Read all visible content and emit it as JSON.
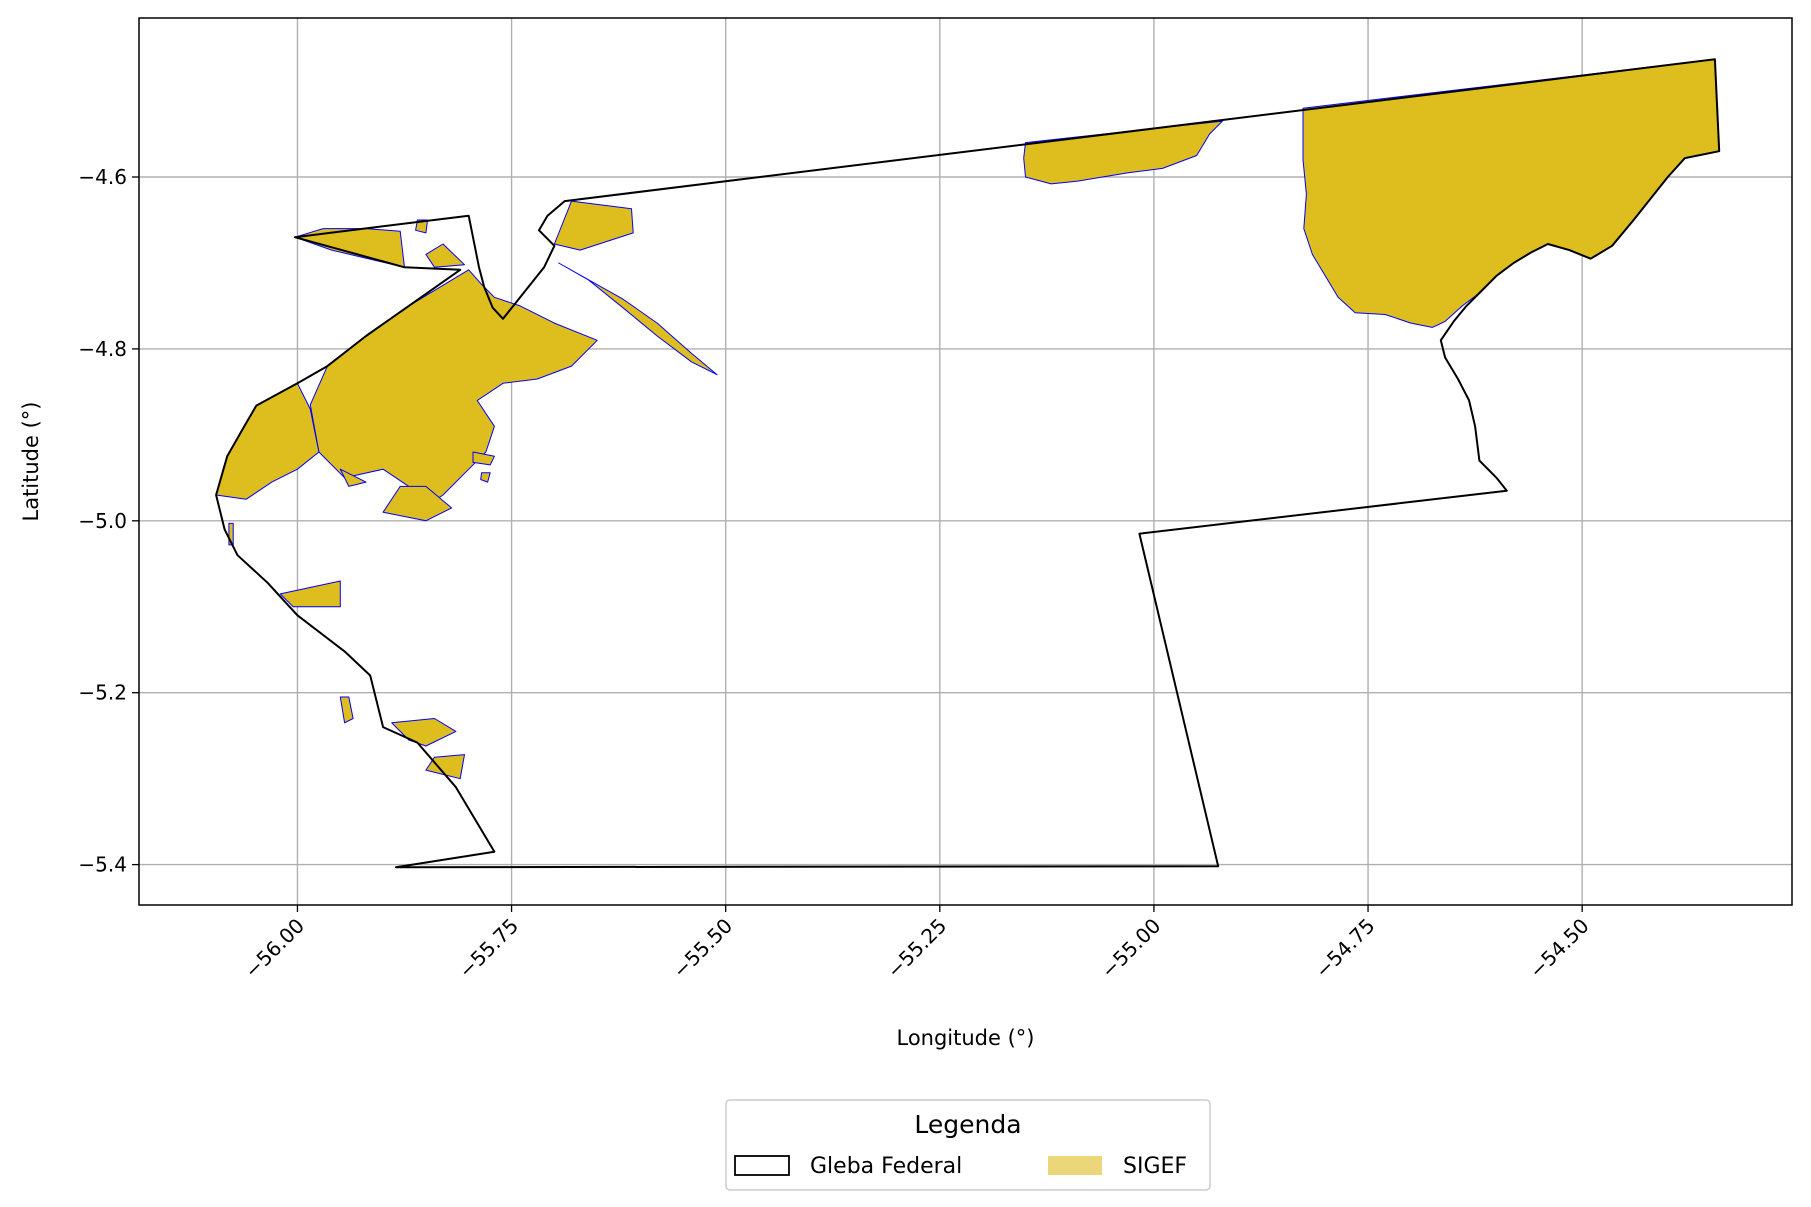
{
  "chart_data": {
    "type": "map",
    "xlabel": "Longitude (°)",
    "ylabel": "Latitude (°)",
    "xlim": [
      -56.185,
      -54.255
    ],
    "ylim": [
      -5.447,
      -4.415
    ],
    "xticks": [
      -56.0,
      -55.75,
      -55.5,
      -55.25,
      -55.0,
      -54.75,
      -54.5
    ],
    "xtick_labels": [
      "−56.00",
      "−55.75",
      "−55.50",
      "−55.25",
      "−55.00",
      "−54.75",
      "−54.50"
    ],
    "yticks": [
      -4.6,
      -4.8,
      -5.0,
      -5.2,
      -5.4
    ],
    "ytick_labels": [
      "−4.6",
      "−4.8",
      "−5.0",
      "−5.2",
      "−5.4"
    ],
    "grid": true,
    "legend": {
      "title": "Legenda",
      "placement": "bottom-center",
      "entries": [
        {
          "label": "Gleba Federal",
          "style": "outline",
          "edge": "#000000",
          "fill": "#ffffff"
        },
        {
          "label": "SIGEF",
          "style": "filled",
          "edge": "#0000ff",
          "fill": "#debd1f"
        }
      ]
    },
    "layers": [
      {
        "name": "Gleba Federal",
        "edge": "#000000",
        "fill": "none",
        "polygons": [
          [
            [
              -55.885,
              -5.403
            ],
            [
              -55.77,
              -5.385
            ],
            [
              -55.815,
              -5.31
            ],
            [
              -55.86,
              -5.258
            ],
            [
              -55.9,
              -5.24
            ],
            [
              -55.915,
              -5.18
            ],
            [
              -55.945,
              -5.152
            ],
            [
              -56.0,
              -5.11
            ],
            [
              -56.035,
              -5.072
            ],
            [
              -56.07,
              -5.04
            ],
            [
              -56.085,
              -5.01
            ],
            [
              -56.095,
              -4.97
            ],
            [
              -56.082,
              -4.925
            ],
            [
              -56.062,
              -4.89
            ],
            [
              -56.048,
              -4.866
            ],
            [
              -56.0,
              -4.84
            ],
            [
              -55.965,
              -4.82
            ],
            [
              -55.92,
              -4.785
            ],
            [
              -55.87,
              -4.75
            ],
            [
              -55.81,
              -4.708
            ],
            [
              -55.875,
              -4.705
            ],
            [
              -56.003,
              -4.67
            ],
            [
              -55.8,
              -4.645
            ],
            [
              -55.788,
              -4.705
            ],
            [
              -55.782,
              -4.728
            ],
            [
              -55.772,
              -4.752
            ],
            [
              -55.76,
              -4.765
            ],
            [
              -55.712,
              -4.705
            ],
            [
              -55.7,
              -4.68
            ],
            [
              -55.718,
              -4.662
            ],
            [
              -55.708,
              -4.645
            ],
            [
              -55.688,
              -4.628
            ],
            [
              -54.345,
              -4.463
            ],
            [
              -54.34,
              -4.57
            ],
            [
              -54.38,
              -4.578
            ],
            [
              -54.4,
              -4.6
            ],
            [
              -54.42,
              -4.625
            ],
            [
              -54.44,
              -4.65
            ],
            [
              -54.465,
              -4.68
            ],
            [
              -54.49,
              -4.695
            ],
            [
              -54.515,
              -4.685
            ],
            [
              -54.54,
              -4.678
            ],
            [
              -54.56,
              -4.688
            ],
            [
              -54.58,
              -4.7
            ],
            [
              -54.6,
              -4.715
            ],
            [
              -54.62,
              -4.735
            ],
            [
              -54.635,
              -4.75
            ],
            [
              -54.65,
              -4.768
            ],
            [
              -54.665,
              -4.79
            ],
            [
              -54.66,
              -4.81
            ],
            [
              -54.645,
              -4.835
            ],
            [
              -54.632,
              -4.86
            ],
            [
              -54.625,
              -4.89
            ],
            [
              -54.62,
              -4.93
            ],
            [
              -54.6,
              -4.95
            ],
            [
              -54.588,
              -4.965
            ],
            [
              -55.017,
              -5.015
            ],
            [
              -54.925,
              -5.402
            ],
            [
              -55.885,
              -5.403
            ]
          ]
        ]
      },
      {
        "name": "SIGEF",
        "edge": "#0000ff",
        "fill": "#debd1f",
        "polygons": [
          [
            [
              -54.826,
              -4.52
            ],
            [
              -54.345,
              -4.463
            ],
            [
              -54.34,
              -4.57
            ],
            [
              -54.38,
              -4.578
            ],
            [
              -54.4,
              -4.6
            ],
            [
              -54.42,
              -4.625
            ],
            [
              -54.44,
              -4.65
            ],
            [
              -54.465,
              -4.68
            ],
            [
              -54.49,
              -4.695
            ],
            [
              -54.515,
              -4.685
            ],
            [
              -54.54,
              -4.678
            ],
            [
              -54.56,
              -4.688
            ],
            [
              -54.58,
              -4.7
            ],
            [
              -54.6,
              -4.715
            ],
            [
              -54.62,
              -4.735
            ],
            [
              -54.64,
              -4.75
            ],
            [
              -54.66,
              -4.768
            ],
            [
              -54.675,
              -4.775
            ],
            [
              -54.7,
              -4.77
            ],
            [
              -54.73,
              -4.76
            ],
            [
              -54.765,
              -4.758
            ],
            [
              -54.785,
              -4.74
            ],
            [
              -54.8,
              -4.715
            ],
            [
              -54.815,
              -4.69
            ],
            [
              -54.825,
              -4.66
            ],
            [
              -54.822,
              -4.62
            ],
            [
              -54.826,
              -4.58
            ]
          ],
          [
            [
              -55.15,
              -4.56
            ],
            [
              -54.92,
              -4.535
            ],
            [
              -54.935,
              -4.55
            ],
            [
              -54.95,
              -4.575
            ],
            [
              -54.99,
              -4.59
            ],
            [
              -55.03,
              -4.595
            ],
            [
              -55.06,
              -4.6
            ],
            [
              -55.09,
              -4.605
            ],
            [
              -55.12,
              -4.608
            ],
            [
              -55.15,
              -4.6
            ],
            [
              -55.152,
              -4.578
            ]
          ],
          [
            [
              -55.68,
              -4.628
            ],
            [
              -55.61,
              -4.637
            ],
            [
              -55.608,
              -4.665
            ],
            [
              -55.67,
              -4.685
            ],
            [
              -55.7,
              -4.678
            ]
          ],
          [
            [
              -55.695,
              -4.7
            ],
            [
              -55.66,
              -4.72
            ],
            [
              -55.62,
              -4.752
            ],
            [
              -55.58,
              -4.785
            ],
            [
              -55.54,
              -4.815
            ],
            [
              -55.51,
              -4.83
            ],
            [
              -55.54,
              -4.805
            ],
            [
              -55.58,
              -4.77
            ],
            [
              -55.62,
              -4.742
            ]
          ],
          [
            [
              -55.8,
              -4.708
            ],
            [
              -55.87,
              -4.75
            ],
            [
              -55.92,
              -4.785
            ],
            [
              -55.965,
              -4.82
            ],
            [
              -55.985,
              -4.865
            ],
            [
              -55.975,
              -4.92
            ],
            [
              -55.945,
              -4.95
            ],
            [
              -55.9,
              -4.94
            ],
            [
              -55.87,
              -4.96
            ],
            [
              -55.86,
              -4.99
            ],
            [
              -55.83,
              -4.97
            ],
            [
              -55.8,
              -4.94
            ],
            [
              -55.78,
              -4.92
            ],
            [
              -55.77,
              -4.89
            ],
            [
              -55.79,
              -4.86
            ],
            [
              -55.76,
              -4.84
            ],
            [
              -55.72,
              -4.835
            ],
            [
              -55.68,
              -4.82
            ],
            [
              -55.65,
              -4.79
            ],
            [
              -55.7,
              -4.77
            ],
            [
              -55.74,
              -4.75
            ],
            [
              -55.77,
              -4.74
            ],
            [
              -55.785,
              -4.725
            ]
          ],
          [
            [
              -56.0,
              -4.84
            ],
            [
              -56.048,
              -4.866
            ],
            [
              -56.062,
              -4.89
            ],
            [
              -56.082,
              -4.925
            ],
            [
              -56.095,
              -4.97
            ],
            [
              -56.06,
              -4.975
            ],
            [
              -56.03,
              -4.955
            ],
            [
              -56.0,
              -4.94
            ],
            [
              -55.975,
              -4.92
            ],
            [
              -55.985,
              -4.87
            ]
          ],
          [
            [
              -55.95,
              -4.94
            ],
            [
              -55.92,
              -4.955
            ],
            [
              -55.94,
              -4.96
            ]
          ],
          [
            [
              -55.88,
              -4.96
            ],
            [
              -55.9,
              -4.99
            ],
            [
              -55.85,
              -5.0
            ],
            [
              -55.82,
              -4.985
            ],
            [
              -55.85,
              -4.96
            ]
          ],
          [
            [
              -55.95,
              -5.07
            ],
            [
              -56.02,
              -5.085
            ],
            [
              -56.005,
              -5.1
            ],
            [
              -55.95,
              -5.1
            ]
          ],
          [
            [
              -55.95,
              -5.205
            ],
            [
              -55.94,
              -5.205
            ],
            [
              -55.935,
              -5.23
            ],
            [
              -55.945,
              -5.235
            ]
          ],
          [
            [
              -55.89,
              -5.235
            ],
            [
              -55.84,
              -5.23
            ],
            [
              -55.815,
              -5.245
            ],
            [
              -55.85,
              -5.262
            ],
            [
              -55.87,
              -5.255
            ]
          ],
          [
            [
              -55.84,
              -5.275
            ],
            [
              -55.805,
              -5.272
            ],
            [
              -55.81,
              -5.3
            ],
            [
              -55.85,
              -5.29
            ]
          ],
          [
            [
              -56.003,
              -4.67
            ],
            [
              -55.97,
              -4.66
            ],
            [
              -55.92,
              -4.66
            ],
            [
              -55.88,
              -4.663
            ],
            [
              -55.875,
              -4.705
            ],
            [
              -55.96,
              -4.685
            ]
          ],
          [
            [
              -55.86,
              -4.65
            ],
            [
              -55.848,
              -4.65
            ],
            [
              -55.85,
              -4.665
            ],
            [
              -55.862,
              -4.662
            ]
          ],
          [
            [
              -55.85,
              -4.69
            ],
            [
              -55.83,
              -4.678
            ],
            [
              -55.805,
              -4.702
            ],
            [
              -55.84,
              -4.705
            ]
          ],
          [
            [
              -55.795,
              -4.92
            ],
            [
              -55.77,
              -4.925
            ],
            [
              -55.775,
              -4.935
            ],
            [
              -55.795,
              -4.932
            ]
          ],
          [
            [
              -55.785,
              -4.944
            ],
            [
              -55.775,
              -4.944
            ],
            [
              -55.778,
              -4.955
            ],
            [
              -55.786,
              -4.952
            ]
          ],
          [
            [
              -56.08,
              -5.003
            ],
            [
              -56.075,
              -5.003
            ],
            [
              -56.075,
              -5.028
            ],
            [
              -56.08,
              -5.028
            ]
          ]
        ]
      }
    ]
  }
}
